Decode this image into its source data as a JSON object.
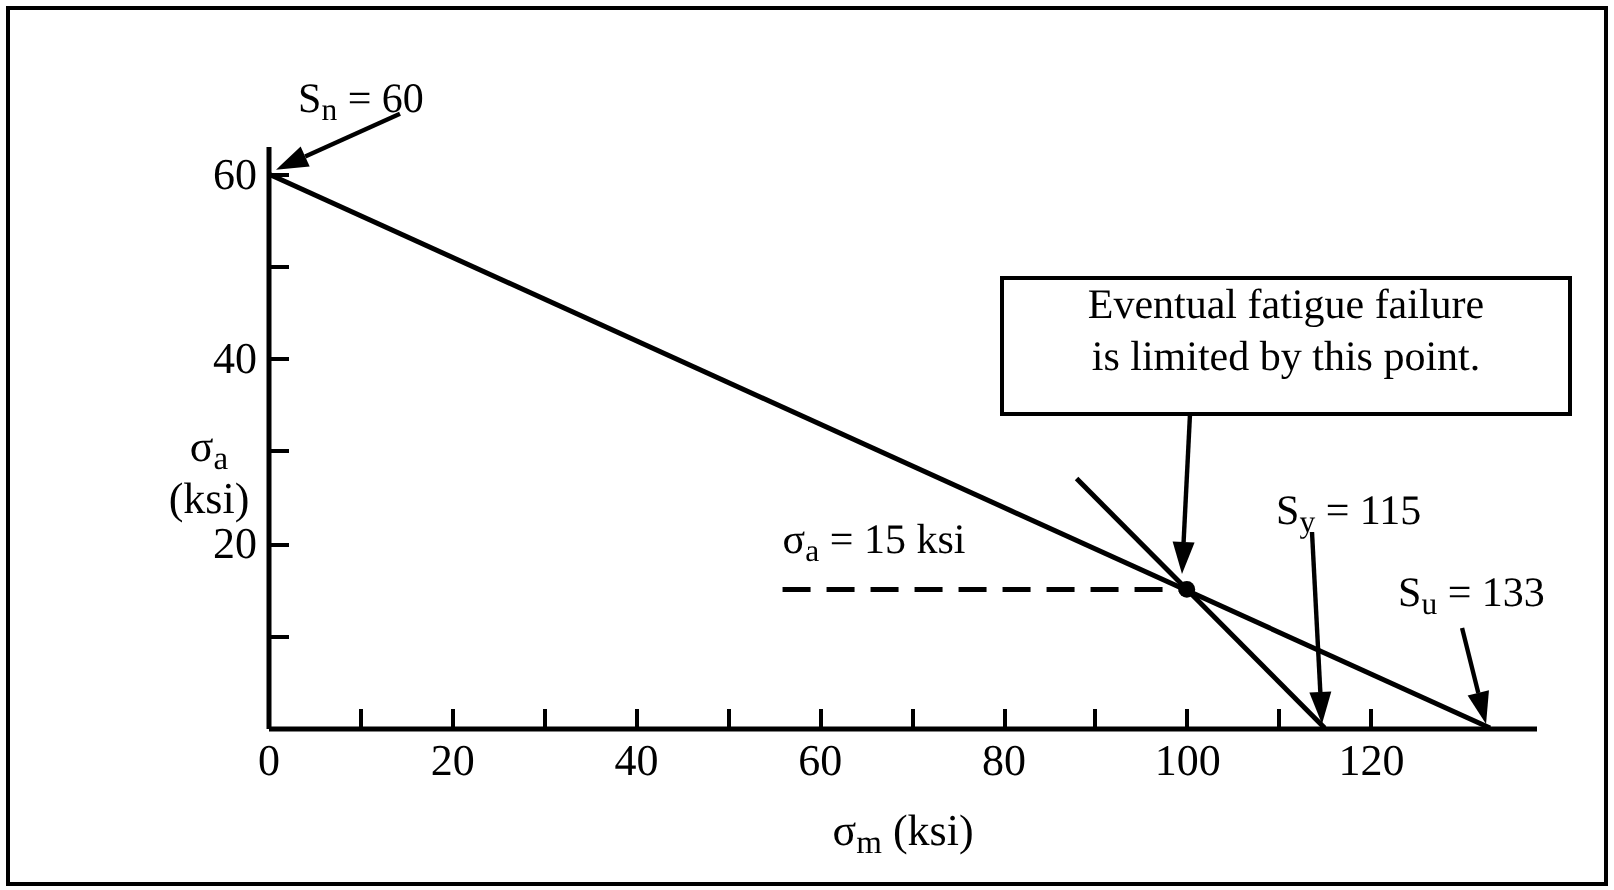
{
  "chart_data": {
    "type": "line",
    "xlabel": "σ$_{m}$  (ksi)",
    "ylabel": "σ$_{a}$\n(ksi)",
    "xlim": [
      0,
      138
    ],
    "ylim": [
      0,
      63
    ],
    "xticks": [
      0,
      {
        "value": 10,
        "label": null
      },
      20,
      {
        "value": 30,
        "label": null
      },
      40,
      {
        "value": 50,
        "label": null
      },
      60,
      {
        "value": 70,
        "label": null
      },
      80,
      {
        "value": 90,
        "label": null
      },
      100,
      {
        "value": 110,
        "label": null
      },
      120
    ],
    "yticks": [
      {
        "value": 10,
        "label": null
      },
      20,
      {
        "value": 30,
        "label": null
      },
      40,
      {
        "value": 50,
        "label": null
      },
      60
    ],
    "series": [
      {
        "color": "#000000",
        "x": [
          0,
          133
        ],
        "values": [
          60,
          0
        ]
      },
      {
        "color": "#000000",
        "x": [
          88,
          115
        ],
        "values": [
          27,
          0
        ]
      },
      {
        "color": "#000000",
        "line_style": "dashed",
        "x": [
          56,
          100
        ],
        "values": [
          15,
          15
        ]
      },
      {
        "type": "scatter",
        "color": "#000000",
        "marker": "circle",
        "x": [
          100
        ],
        "values": [
          15
        ]
      }
    ],
    "annotations": [
      {
        "text": "S$_{n}$ = 60",
        "x": 0,
        "y": 60
      },
      {
        "text": "σ$_{a}$ = 15 ksi",
        "x": 56,
        "y": 15
      },
      "Eventual fatigue failure\nis limited by this point.",
      "S$_{y}$ = 115",
      {
        "text": "S$_{u}$ = 133",
        "x": 133,
        "y": 0
      }
    ]
  }
}
